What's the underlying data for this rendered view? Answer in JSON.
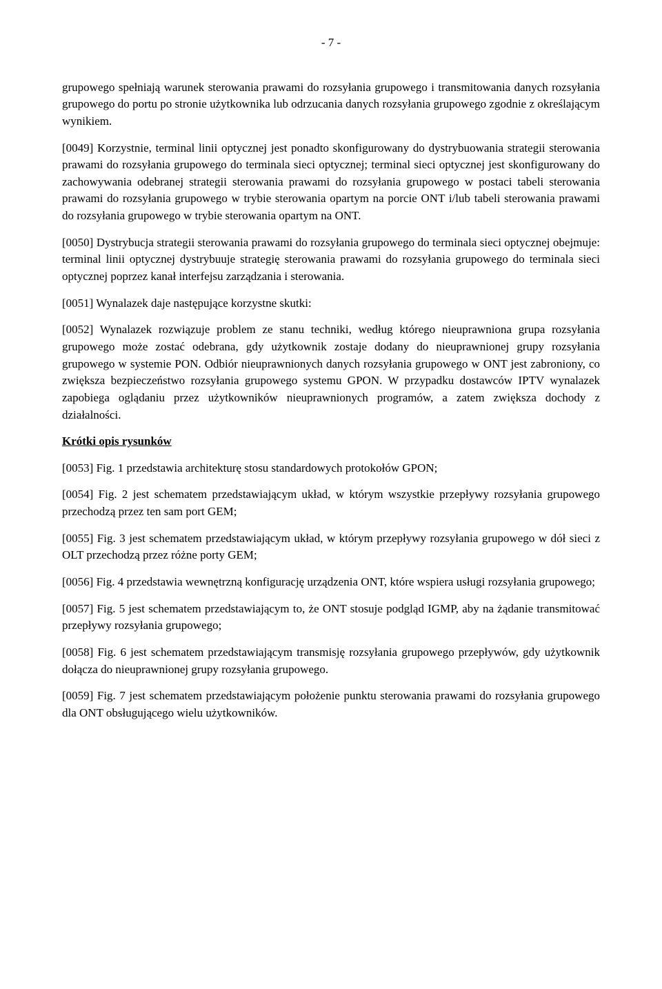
{
  "page_number": "- 7 -",
  "paragraphs": {
    "p1": "grupowego spełniają warunek sterowania prawami do rozsyłania grupowego i transmitowania danych rozsyłania grupowego do portu po stronie użytkownika lub odrzucania danych rozsyłania grupowego zgodnie z określającym wynikiem.",
    "p2": "[0049] Korzystnie, terminal linii optycznej jest ponadto skonfigurowany do dystrybuowania strategii sterowania prawami do rozsyłania grupowego do terminala sieci optycznej; terminal sieci optycznej jest skonfigurowany do zachowywania odebranej strategii sterowania prawami do rozsyłania grupowego w postaci tabeli sterowania prawami do rozsyłania grupowego w trybie sterowania opartym na porcie ONT i/lub tabeli sterowania prawami do rozsyłania grupowego w trybie sterowania opartym na ONT.",
    "p3": "[0050] Dystrybucja strategii sterowania prawami do rozsyłania grupowego do terminala sieci optycznej obejmuje: terminal linii optycznej dystrybuuje strategię sterowania prawami do rozsyłania grupowego do terminala sieci optycznej poprzez kanał interfejsu zarządzania i sterowania.",
    "p4": "[0051] Wynalazek daje następujące korzystne skutki:",
    "p5": "[0052] Wynalazek rozwiązuje problem ze stanu techniki, według którego nieuprawniona grupa rozsyłania grupowego może zostać odebrana, gdy użytkownik zostaje dodany do nieuprawnionej grupy rozsyłania grupowego w systemie PON. Odbiór nieuprawnionych danych rozsyłania grupowego w ONT jest zabroniony, co zwiększa bezpieczeństwo rozsyłania grupowego systemu GPON. W przypadku dostawców IPTV wynalazek zapobiega oglądaniu przez użytkowników nieuprawnionych programów, a zatem zwiększa dochody z działalności.",
    "heading": "Krótki opis rysunków",
    "p6": "[0053] Fig. 1 przedstawia architekturę stosu standardowych protokołów GPON;",
    "p7": "[0054] Fig. 2 jest schematem przedstawiającym układ, w którym wszystkie przepływy rozsyłania grupowego przechodzą przez ten sam port GEM;",
    "p8": "[0055] Fig. 3 jest schematem przedstawiającym układ, w którym przepływy rozsyłania grupowego w dół sieci z OLT przechodzą przez różne porty GEM;",
    "p9": "[0056] Fig. 4 przedstawia wewnętrzną konfigurację urządzenia ONT, które wspiera usługi rozsyłania grupowego;",
    "p10": "[0057] Fig. 5 jest schematem przedstawiającym to, że ONT stosuje podgląd IGMP, aby na żądanie transmitować przepływy rozsyłania grupowego;",
    "p11": "[0058] Fig. 6 jest schematem przedstawiającym transmisję rozsyłania grupowego przepływów, gdy użytkownik dołącza do nieuprawnionej grupy rozsyłania grupowego.",
    "p12": "[0059] Fig. 7 jest schematem przedstawiającym położenie punktu sterowania prawami do rozsyłania grupowego dla ONT obsługującego wielu użytkowników."
  }
}
